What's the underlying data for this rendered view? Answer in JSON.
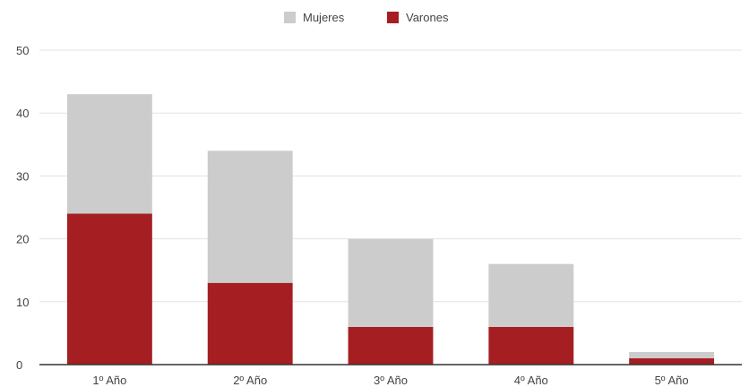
{
  "chart_data": {
    "type": "bar",
    "stacked": true,
    "title": "",
    "xlabel": "",
    "ylabel": "",
    "categories": [
      "1º Año",
      "2º Año",
      "3º Año",
      "4º Año",
      "5º Año"
    ],
    "series": [
      {
        "name": "Varones",
        "values": [
          24,
          13,
          6,
          6,
          1
        ],
        "color": "#a51e22"
      },
      {
        "name": "Mujeres",
        "values": [
          19,
          21,
          14,
          10,
          1
        ],
        "color": "#cccccc"
      }
    ],
    "ylim": [
      0,
      50
    ],
    "yticks": [
      0,
      10,
      20,
      30,
      40,
      50
    ],
    "grid": true,
    "legend_position": "top-center"
  }
}
